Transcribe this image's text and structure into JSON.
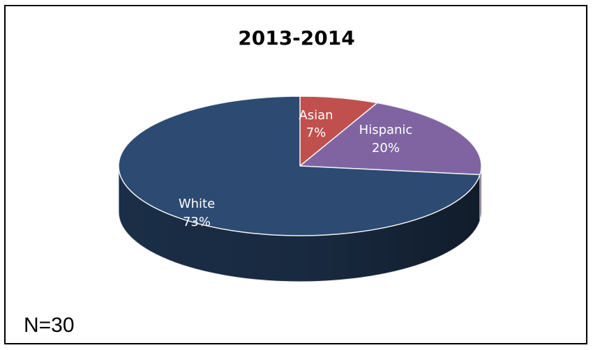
{
  "chart_data": {
    "type": "pie",
    "title": "2013-2014",
    "note": "N=30",
    "slices": [
      {
        "label": "Asian",
        "value": 7,
        "value_label": "7%",
        "color": "#c0504d"
      },
      {
        "label": "Hispanic",
        "value": 20,
        "value_label": "20%",
        "color": "#8064a2"
      },
      {
        "label": "White",
        "value": 73,
        "value_label": "73%",
        "color": "#2c4a72"
      }
    ],
    "style": "3d"
  }
}
